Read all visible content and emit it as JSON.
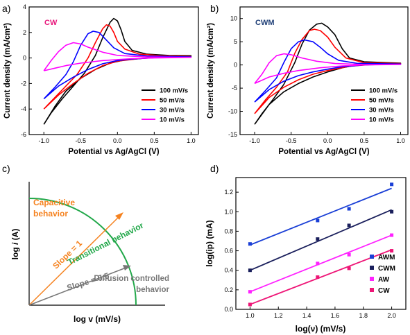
{
  "chart_data": [
    {
      "panel": "a)",
      "type": "line",
      "inset_label": "CW",
      "inset_color": "#e8187c",
      "xlabel": "Potential vs Ag/AgCl (V)",
      "ylabel": "Current density (mA/cm²)",
      "xlim": [
        -1.2,
        1.1
      ],
      "ylim": [
        -6,
        4
      ],
      "xticks": [
        -1.0,
        -0.5,
        0.0,
        0.5,
        1.0
      ],
      "yticks": [
        -6,
        -4,
        -2,
        0,
        2,
        4
      ],
      "legend": "bottom-right",
      "series": [
        {
          "name": "100 mV/s",
          "color": "#000000",
          "points": [
            [
              -1.0,
              -5.2
            ],
            [
              -0.9,
              -4.3
            ],
            [
              -0.75,
              -3.2
            ],
            [
              -0.6,
              -2.2
            ],
            [
              -0.45,
              -1.2
            ],
            [
              -0.3,
              0.2
            ],
            [
              -0.2,
              1.6
            ],
            [
              -0.1,
              2.8
            ],
            [
              -0.05,
              3.1
            ],
            [
              0.0,
              2.9
            ],
            [
              0.05,
              2.2
            ],
            [
              0.1,
              1.3
            ],
            [
              0.2,
              0.6
            ],
            [
              0.4,
              0.3
            ],
            [
              0.7,
              0.2
            ],
            [
              1.0,
              0.18
            ],
            [
              0.7,
              0.1
            ],
            [
              0.4,
              0.0
            ],
            [
              0.1,
              -0.15
            ],
            [
              -0.1,
              -0.4
            ],
            [
              -0.3,
              -0.9
            ],
            [
              -0.5,
              -1.6
            ],
            [
              -0.7,
              -2.6
            ],
            [
              -0.85,
              -3.8
            ],
            [
              -1.0,
              -5.2
            ]
          ]
        },
        {
          "name": "50 mV/s",
          "color": "#ff0000",
          "points": [
            [
              -1.0,
              -4.0
            ],
            [
              -0.85,
              -3.1
            ],
            [
              -0.7,
              -2.2
            ],
            [
              -0.55,
              -1.3
            ],
            [
              -0.4,
              0.0
            ],
            [
              -0.3,
              1.2
            ],
            [
              -0.2,
              2.3
            ],
            [
              -0.15,
              2.6
            ],
            [
              -0.1,
              2.5
            ],
            [
              -0.05,
              2.0
            ],
            [
              0.0,
              1.3
            ],
            [
              0.1,
              0.7
            ],
            [
              0.3,
              0.3
            ],
            [
              0.6,
              0.18
            ],
            [
              1.0,
              0.12
            ],
            [
              0.6,
              0.06
            ],
            [
              0.3,
              -0.05
            ],
            [
              0.0,
              -0.25
            ],
            [
              -0.2,
              -0.6
            ],
            [
              -0.4,
              -1.2
            ],
            [
              -0.6,
              -2.0
            ],
            [
              -0.8,
              -2.9
            ],
            [
              -1.0,
              -4.0
            ]
          ]
        },
        {
          "name": "30 mV/s",
          "color": "#0000ff",
          "points": [
            [
              -1.0,
              -3.2
            ],
            [
              -0.85,
              -2.3
            ],
            [
              -0.7,
              -1.3
            ],
            [
              -0.6,
              -0.3
            ],
            [
              -0.5,
              1.0
            ],
            [
              -0.4,
              1.9
            ],
            [
              -0.33,
              2.1
            ],
            [
              -0.25,
              2.0
            ],
            [
              -0.15,
              1.4
            ],
            [
              -0.05,
              0.8
            ],
            [
              0.1,
              0.35
            ],
            [
              0.4,
              0.15
            ],
            [
              1.0,
              0.08
            ],
            [
              0.5,
              0.02
            ],
            [
              0.2,
              -0.08
            ],
            [
              0.0,
              -0.2
            ],
            [
              -0.2,
              -0.45
            ],
            [
              -0.4,
              -0.9
            ],
            [
              -0.6,
              -1.5
            ],
            [
              -0.8,
              -2.2
            ],
            [
              -1.0,
              -3.2
            ]
          ]
        },
        {
          "name": "10 mV/s",
          "color": "#ff00ff",
          "points": [
            [
              -1.0,
              -1.0
            ],
            [
              -0.9,
              -0.2
            ],
            [
              -0.8,
              0.5
            ],
            [
              -0.7,
              1.0
            ],
            [
              -0.6,
              1.2
            ],
            [
              -0.5,
              1.1
            ],
            [
              -0.4,
              0.85
            ],
            [
              -0.2,
              0.45
            ],
            [
              0.0,
              0.2
            ],
            [
              0.4,
              0.08
            ],
            [
              1.0,
              0.05
            ],
            [
              0.5,
              0.0
            ],
            [
              0.2,
              -0.05
            ],
            [
              -0.2,
              -0.2
            ],
            [
              -0.5,
              -0.4
            ],
            [
              -0.7,
              -0.6
            ],
            [
              -0.85,
              -0.8
            ],
            [
              -1.0,
              -1.0
            ]
          ]
        }
      ]
    },
    {
      "panel": "b)",
      "type": "line",
      "inset_label": "CWM",
      "inset_color": "#1f3f77",
      "xlabel": "Potential vs Ag/AgCl (V)",
      "ylabel": "Current density (mA/cm²)",
      "xlim": [
        -1.2,
        1.1
      ],
      "ylim": [
        -15,
        12.5
      ],
      "xticks": [
        -1.0,
        -0.5,
        0.0,
        0.5,
        1.0
      ],
      "yticks": [
        -15,
        -10,
        -5,
        0,
        5,
        10
      ],
      "legend": "bottom-right",
      "series": [
        {
          "name": "100 mV/s",
          "color": "#000000",
          "points": [
            [
              -1.0,
              -12.8
            ],
            [
              -0.9,
              -10.5
            ],
            [
              -0.75,
              -7.5
            ],
            [
              -0.6,
              -4.2
            ],
            [
              -0.45,
              0.5
            ],
            [
              -0.35,
              4.5
            ],
            [
              -0.25,
              7.5
            ],
            [
              -0.15,
              8.8
            ],
            [
              -0.08,
              9.0
            ],
            [
              0.0,
              8.2
            ],
            [
              0.1,
              6.5
            ],
            [
              0.2,
              3.5
            ],
            [
              0.3,
              1.5
            ],
            [
              0.5,
              0.7
            ],
            [
              0.8,
              0.5
            ],
            [
              1.0,
              0.4
            ],
            [
              0.7,
              0.3
            ],
            [
              0.4,
              0.0
            ],
            [
              0.2,
              -0.6
            ],
            [
              0.0,
              -1.5
            ],
            [
              -0.2,
              -2.6
            ],
            [
              -0.4,
              -4.0
            ],
            [
              -0.6,
              -5.8
            ],
            [
              -0.8,
              -8.5
            ],
            [
              -1.0,
              -12.8
            ]
          ]
        },
        {
          "name": "50 mV/s",
          "color": "#ff0000",
          "points": [
            [
              -1.0,
              -10.5
            ],
            [
              -0.85,
              -7.5
            ],
            [
              -0.7,
              -4.8
            ],
            [
              -0.55,
              -1.5
            ],
            [
              -0.45,
              2.5
            ],
            [
              -0.35,
              5.5
            ],
            [
              -0.25,
              7.4
            ],
            [
              -0.18,
              7.7
            ],
            [
              -0.1,
              7.4
            ],
            [
              0.0,
              6.0
            ],
            [
              0.1,
              3.8
            ],
            [
              0.25,
              1.5
            ],
            [
              0.5,
              0.5
            ],
            [
              1.0,
              0.3
            ],
            [
              0.6,
              0.1
            ],
            [
              0.3,
              -0.3
            ],
            [
              0.0,
              -1.2
            ],
            [
              -0.2,
              -2.0
            ],
            [
              -0.4,
              -3.2
            ],
            [
              -0.6,
              -4.8
            ],
            [
              -0.8,
              -7.0
            ],
            [
              -1.0,
              -10.5
            ]
          ]
        },
        {
          "name": "30 mV/s",
          "color": "#0000ff",
          "points": [
            [
              -1.0,
              -8.0
            ],
            [
              -0.85,
              -5.5
            ],
            [
              -0.7,
              -2.8
            ],
            [
              -0.6,
              0.5
            ],
            [
              -0.5,
              3.5
            ],
            [
              -0.4,
              5.0
            ],
            [
              -0.32,
              5.4
            ],
            [
              -0.2,
              5.0
            ],
            [
              -0.1,
              3.8
            ],
            [
              0.0,
              2.4
            ],
            [
              0.15,
              1.0
            ],
            [
              0.4,
              0.35
            ],
            [
              1.0,
              0.2
            ],
            [
              0.5,
              0.0
            ],
            [
              0.2,
              -0.4
            ],
            [
              0.0,
              -0.9
            ],
            [
              -0.2,
              -1.5
            ],
            [
              -0.4,
              -2.3
            ],
            [
              -0.6,
              -3.5
            ],
            [
              -0.8,
              -5.3
            ],
            [
              -1.0,
              -8.0
            ]
          ]
        },
        {
          "name": "10 mV/s",
          "color": "#ff00ff",
          "points": [
            [
              -1.0,
              -4.0
            ],
            [
              -0.9,
              -2.0
            ],
            [
              -0.8,
              0.5
            ],
            [
              -0.7,
              2.0
            ],
            [
              -0.6,
              2.4
            ],
            [
              -0.5,
              2.2
            ],
            [
              -0.35,
              1.5
            ],
            [
              -0.15,
              0.8
            ],
            [
              0.1,
              0.3
            ],
            [
              0.5,
              0.1
            ],
            [
              1.0,
              0.1
            ],
            [
              0.5,
              0.0
            ],
            [
              0.2,
              -0.2
            ],
            [
              -0.1,
              -0.6
            ],
            [
              -0.4,
              -1.2
            ],
            [
              -0.6,
              -1.8
            ],
            [
              -0.8,
              -2.6
            ],
            [
              -1.0,
              -4.0
            ]
          ]
        }
      ]
    },
    {
      "panel": "c)",
      "type": "diagram",
      "xlabel": "log v (mV/s)",
      "ylabel_prefix": "log ",
      "ylabel_italic": "i",
      "ylabel_suffix": " (A)",
      "labels": {
        "capacitive": [
          "Capacitive",
          "behavior"
        ],
        "slope1": "Slope = 1",
        "slope05": "Slope = 0.5",
        "transitional": "Transitional behavior",
        "diffusion": [
          "Diffusion controlled",
          "behavior"
        ]
      },
      "colors": {
        "capacitive": "#f5821f",
        "transitional": "#22a84a",
        "diffusion": "#777777"
      }
    },
    {
      "panel": "d)",
      "type": "scatter",
      "xlabel_main": "log(ν) (mV/s)",
      "ylabel": "log(ip) (mA)",
      "xlim": [
        0.9,
        2.1
      ],
      "ylim": [
        0.0,
        1.35
      ],
      "xticks": [
        1.0,
        1.2,
        1.4,
        1.6,
        1.8,
        2.0
      ],
      "yticks": [
        0.0,
        0.2,
        0.4,
        0.6,
        0.8,
        1.0,
        1.2
      ],
      "legend": "bottom-right",
      "series": [
        {
          "name": "AWM",
          "color": "#1a3fd6",
          "x": [
            1.0,
            1.477,
            1.699,
            2.0
          ],
          "y": [
            0.67,
            0.91,
            1.03,
            1.28
          ],
          "fit": [
            0.66,
            1.24
          ]
        },
        {
          "name": "CWM",
          "color": "#1a1f5c",
          "x": [
            1.0,
            1.477,
            1.699,
            2.0
          ],
          "y": [
            0.4,
            0.72,
            0.86,
            1.0
          ],
          "fit": [
            0.4,
            1.02
          ]
        },
        {
          "name": "AW",
          "color": "#ff22ff",
          "x": [
            1.0,
            1.477,
            1.699,
            2.0
          ],
          "y": [
            0.18,
            0.47,
            0.56,
            0.76
          ],
          "fit": [
            0.18,
            0.76
          ]
        },
        {
          "name": "CW",
          "color": "#ee1677",
          "x": [
            1.0,
            1.477,
            1.699,
            2.0
          ],
          "y": [
            0.05,
            0.33,
            0.42,
            0.6
          ],
          "fit": [
            0.05,
            0.61
          ]
        }
      ]
    }
  ]
}
